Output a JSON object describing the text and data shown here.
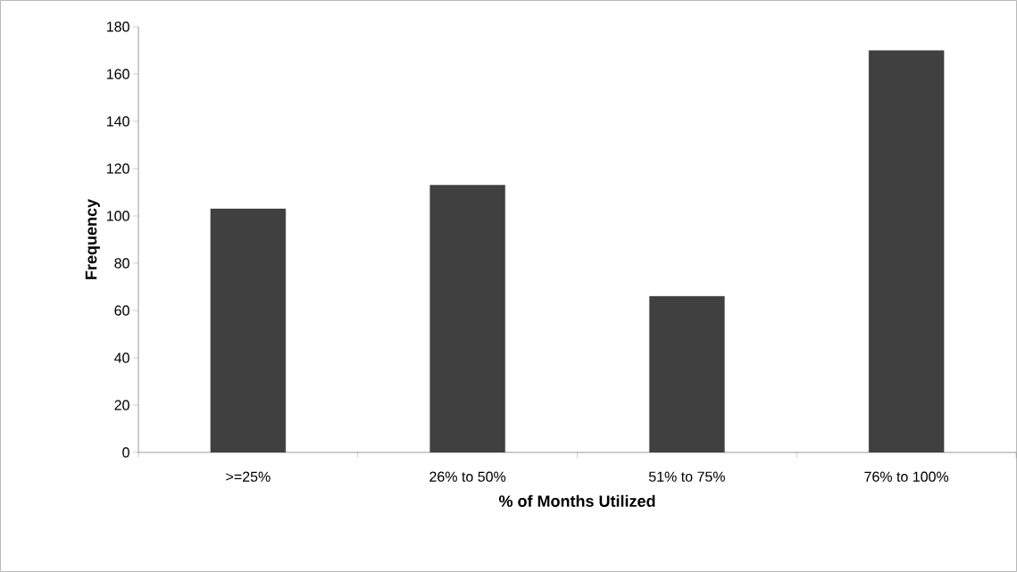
{
  "chart_data": {
    "type": "bar",
    "xlabel": "% of Months Utilized",
    "ylabel": "Frequency",
    "categories": [
      ">=25%",
      "26% to 50%",
      "51% to 75%",
      "76% to 100%"
    ],
    "values": [
      103,
      113,
      66,
      170
    ],
    "color": "#404040",
    "ylim": [
      0,
      180
    ],
    "yticks": [
      0,
      20,
      40,
      60,
      80,
      100,
      120,
      140,
      160,
      180
    ],
    "grid": false
  }
}
